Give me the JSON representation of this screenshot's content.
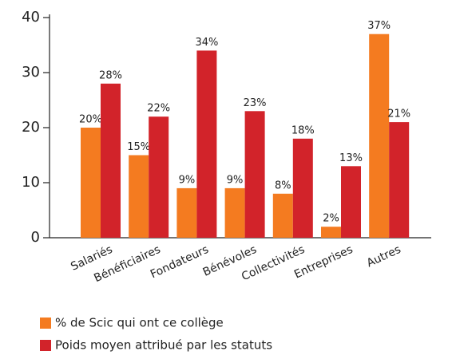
{
  "chart_data": {
    "type": "bar",
    "categories": [
      "Salariés",
      "Bénéficiaires",
      "Fondateurs",
      "Bénévoles",
      "Collectivités",
      "Entreprises",
      "Autres"
    ],
    "series": [
      {
        "name": "% de Scic qui ont ce collège",
        "color": "#f47b20",
        "values": [
          20,
          15,
          9,
          9,
          8,
          2,
          37
        ],
        "value_labels": [
          "20%",
          "15%",
          "9%",
          "9%",
          "8%",
          "2%",
          "37%"
        ]
      },
      {
        "name": "Poids moyen attribué par les statuts",
        "color": "#d2232a",
        "values": [
          28,
          22,
          34,
          23,
          18,
          13,
          21
        ],
        "value_labels": [
          "28%",
          "22%",
          "34%",
          "23%",
          "18%",
          "13%",
          "21%"
        ]
      }
    ],
    "ylim": [
      0,
      40
    ],
    "yticks": [
      0,
      10,
      20,
      30,
      40
    ],
    "grid": false
  }
}
